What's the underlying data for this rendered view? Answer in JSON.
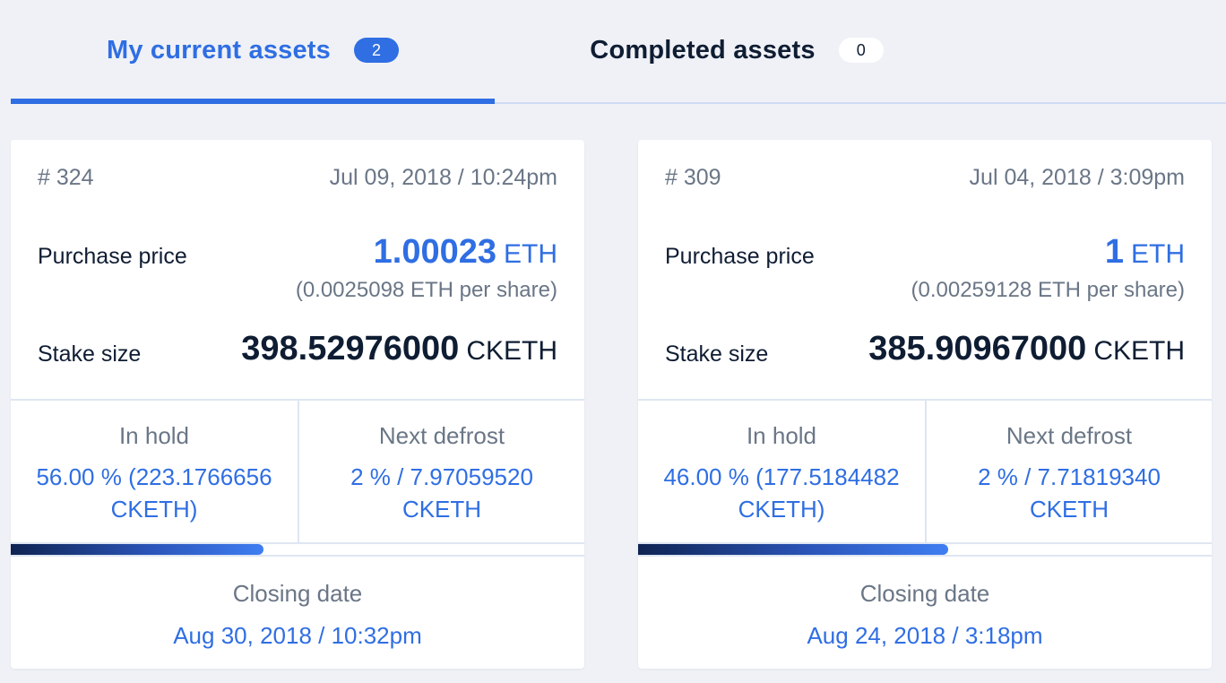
{
  "tabs": [
    {
      "label": "My current assets",
      "count": "2",
      "active": true
    },
    {
      "label": "Completed assets",
      "count": "0",
      "active": false
    }
  ],
  "cards": [
    {
      "id": "# 324",
      "date": "Jul 09, 2018 / 10:24pm",
      "purchase_label": "Purchase price",
      "price_value": "1.00023",
      "price_unit": "ETH",
      "per_share": "(0.0025098 ETH per share)",
      "stake_label": "Stake size",
      "stake_value": "398.52976000",
      "stake_unit": "CKETH",
      "in_hold_label": "In hold",
      "in_hold_value": "56.00 % (223.1766656 CKETH)",
      "next_defrost_label": "Next defrost",
      "next_defrost_value": "2 % / 7.97059520 CKETH",
      "progress_percent": 44,
      "closing_label": "Closing date",
      "closing_value": "Aug 30, 2018 / 10:32pm"
    },
    {
      "id": "# 309",
      "date": "Jul 04, 2018 / 3:09pm",
      "purchase_label": "Purchase price",
      "price_value": "1",
      "price_unit": "ETH",
      "per_share": "(0.00259128 ETH per share)",
      "stake_label": "Stake size",
      "stake_value": "385.90967000",
      "stake_unit": "CKETH",
      "in_hold_label": "In hold",
      "in_hold_value": "46.00 % (177.5184482 CKETH)",
      "next_defrost_label": "Next defrost",
      "next_defrost_value": "2 % / 7.71819340 CKETH",
      "progress_percent": 54,
      "closing_label": "Closing date",
      "closing_value": "Aug 24, 2018 / 3:18pm"
    }
  ],
  "colors": {
    "accent": "#2f6ee3",
    "text_dark": "#0f1d33",
    "text_muted": "#6a7686",
    "background": "#eff1f6"
  }
}
